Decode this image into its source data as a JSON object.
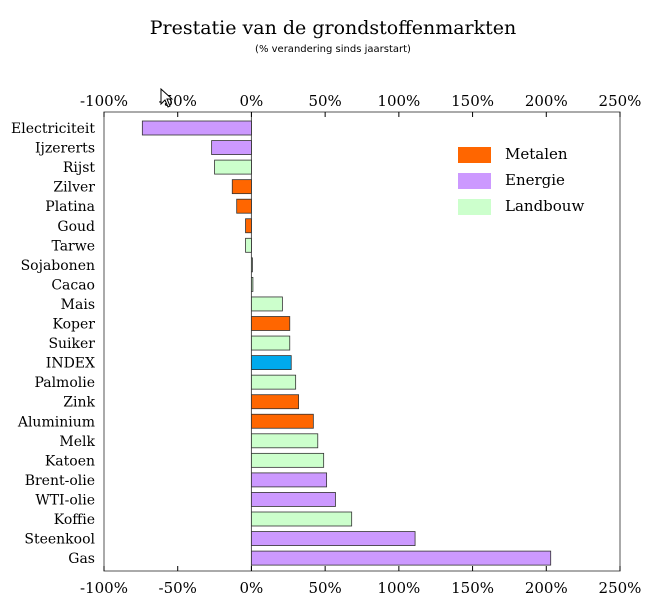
{
  "chart_data": {
    "type": "bar",
    "orientation": "horizontal",
    "title": "Prestatie van de grondstoffenmarkten",
    "subtitle": "(% verandering sinds jaarstart)",
    "xlim": [
      -100,
      250
    ],
    "xticks": [
      -100,
      -50,
      0,
      50,
      100,
      150,
      200,
      250
    ],
    "xtick_labels": [
      "-100%",
      "-50%",
      "0%",
      "50%",
      "100%",
      "150%",
      "200%",
      "250%"
    ],
    "tick_positions": [
      "top",
      "bottom"
    ],
    "grid": false,
    "legend_position": "top-right",
    "legend": [
      {
        "name": "Metalen",
        "color": "#ff6600"
      },
      {
        "name": "Energie",
        "color": "#cc99ff"
      },
      {
        "name": "Landbouw",
        "color": "#ccffcc"
      }
    ],
    "index_color": "#00aaee",
    "categories": [
      "Electriciteit",
      "Ijzererts",
      "Rijst",
      "Zilver",
      "Platina",
      "Goud",
      "Tarwe",
      "Sojabonen",
      "Cacao",
      "Mais",
      "Koper",
      "Suiker",
      "INDEX",
      "Palmolie",
      "Zink",
      "Aluminium",
      "Melk",
      "Katoen",
      "Brent-olie",
      "WTI-olie",
      "Koffie",
      "Steenkool",
      "Gas"
    ],
    "values": [
      -74,
      -27,
      -25,
      -13,
      -10,
      -4,
      -4,
      0,
      1,
      21,
      26,
      26,
      27,
      30,
      32,
      42,
      45,
      49,
      51,
      57,
      68,
      111,
      203
    ],
    "groups": [
      "Energie",
      "Energie",
      "Landbouw",
      "Metalen",
      "Metalen",
      "Metalen",
      "Landbouw",
      "Landbouw",
      "Landbouw",
      "Landbouw",
      "Metalen",
      "Landbouw",
      "INDEX",
      "Landbouw",
      "Metalen",
      "Metalen",
      "Landbouw",
      "Landbouw",
      "Energie",
      "Energie",
      "Landbouw",
      "Energie",
      "Energie"
    ]
  }
}
